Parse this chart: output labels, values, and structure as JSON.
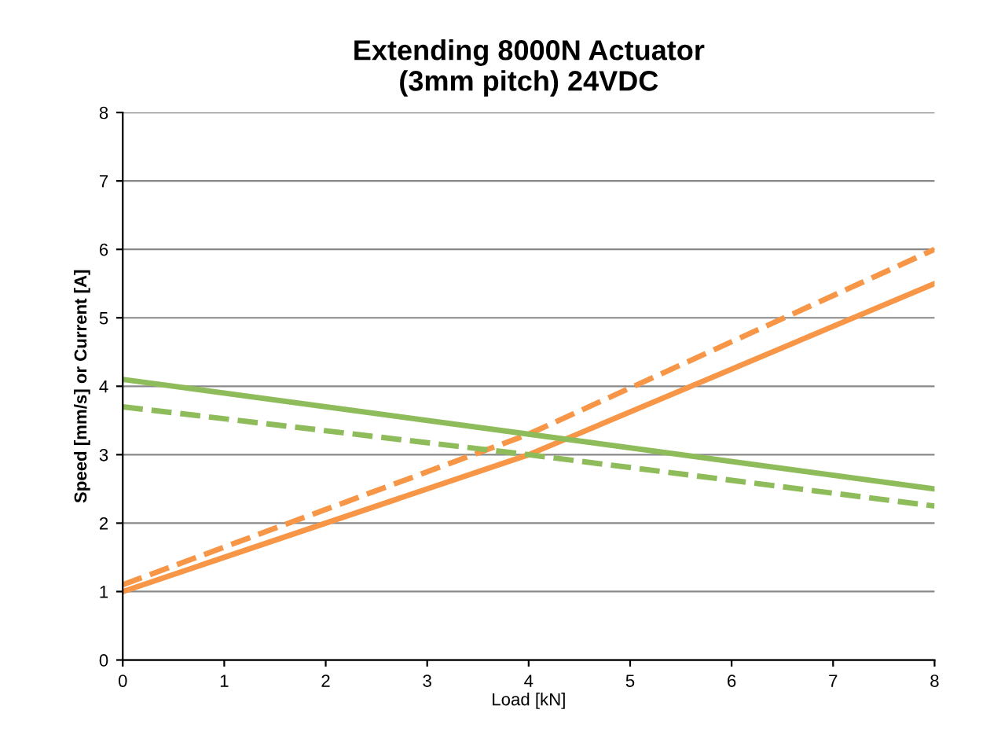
{
  "chart_data": {
    "type": "line",
    "title": "Extending 8000N Actuator\n(3mm pitch) 24VDC",
    "xlabel": "Load [kN]",
    "ylabel": "Speed [mm/s] or Current [A]",
    "x": [
      0,
      4,
      8
    ],
    "series": [
      {
        "color": "#f79646",
        "line_style": "solid",
        "values": [
          1.0,
          3.0,
          5.5
        ]
      },
      {
        "color": "#f79646",
        "line_style": "dashed",
        "values": [
          1.1,
          3.3,
          6.0
        ]
      },
      {
        "color": "#8fbc5a",
        "line_style": "solid",
        "values": [
          4.1,
          3.3,
          2.5
        ]
      },
      {
        "color": "#8fbc5a",
        "line_style": "dashed",
        "values": [
          3.7,
          3.0,
          2.25
        ]
      }
    ],
    "xlim": [
      0,
      8
    ],
    "xticks": [
      0,
      1,
      2,
      3,
      4,
      5,
      6,
      7,
      8
    ],
    "ylim": [
      0,
      8
    ],
    "yticks": [
      0,
      1,
      2,
      3,
      4,
      5,
      6,
      7,
      8
    ],
    "grid": "y",
    "legend": false,
    "marker": "none"
  }
}
